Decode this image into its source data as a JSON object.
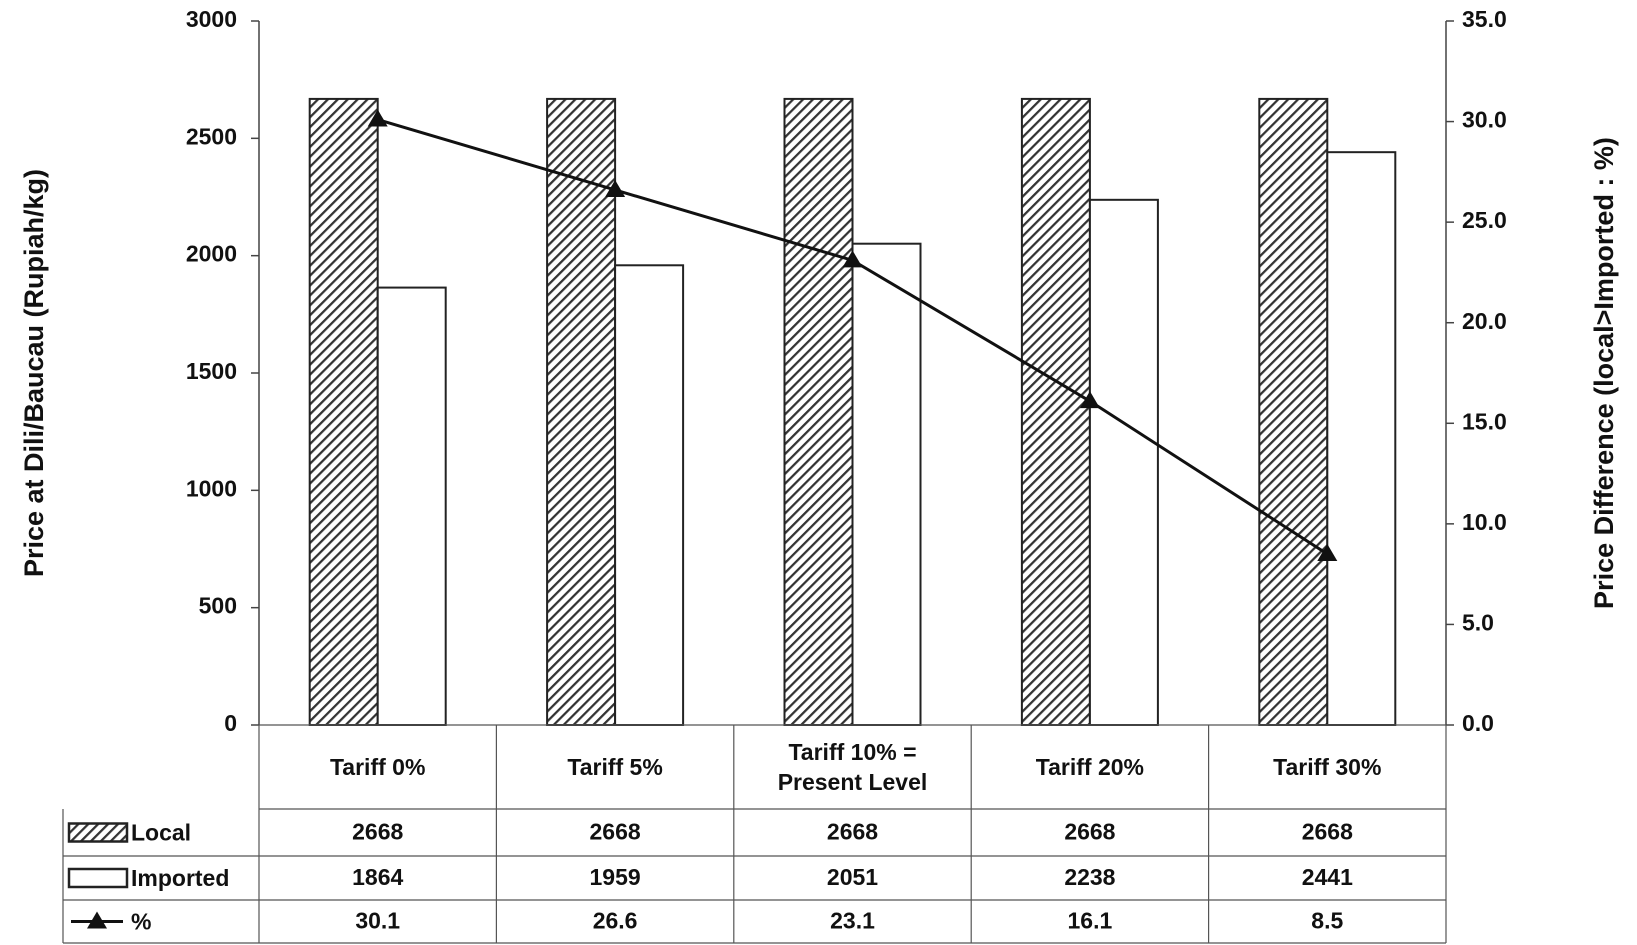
{
  "chart_data": {
    "type": "bar",
    "y_label": "Price at Dili/Baucau (Rupiah/kg)",
    "y2_label": "Price Difference (local>Imported : %)",
    "categories": [
      "Tariff 0%",
      "Tariff 5%",
      "Tariff 10% = Present Level",
      "Tariff 20%",
      "Tariff 30%"
    ],
    "series": [
      {
        "name": "Local",
        "color": "#333333",
        "hatch": true,
        "values": [
          2668,
          2668,
          2668,
          2668,
          2668
        ]
      },
      {
        "name": "Imported",
        "color": "#ffffff",
        "values": [
          1864,
          1959,
          2051,
          2238,
          2441
        ]
      },
      {
        "name": "%",
        "type": "line",
        "axis": "y2",
        "color": "#111111",
        "values": [
          30.1,
          26.6,
          23.1,
          16.1,
          8.5
        ]
      }
    ],
    "ylim": [
      0,
      3000
    ],
    "yticks": [
      0,
      500,
      1000,
      1500,
      2000,
      2500,
      3000
    ],
    "y2lim": [
      0,
      35
    ],
    "y2ticks": [
      {
        "value": 0,
        "label": "0.0"
      },
      {
        "value": 5,
        "label": "5.0"
      },
      {
        "value": 10,
        "label": "10.0"
      },
      {
        "value": 15,
        "label": "15.0"
      },
      {
        "value": 20,
        "label": "20.0"
      },
      {
        "value": 25,
        "label": "25.0"
      },
      {
        "value": 30,
        "label": "30.0"
      },
      {
        "value": 35,
        "label": "35.0"
      }
    ],
    "grid": false,
    "data_table": true
  }
}
